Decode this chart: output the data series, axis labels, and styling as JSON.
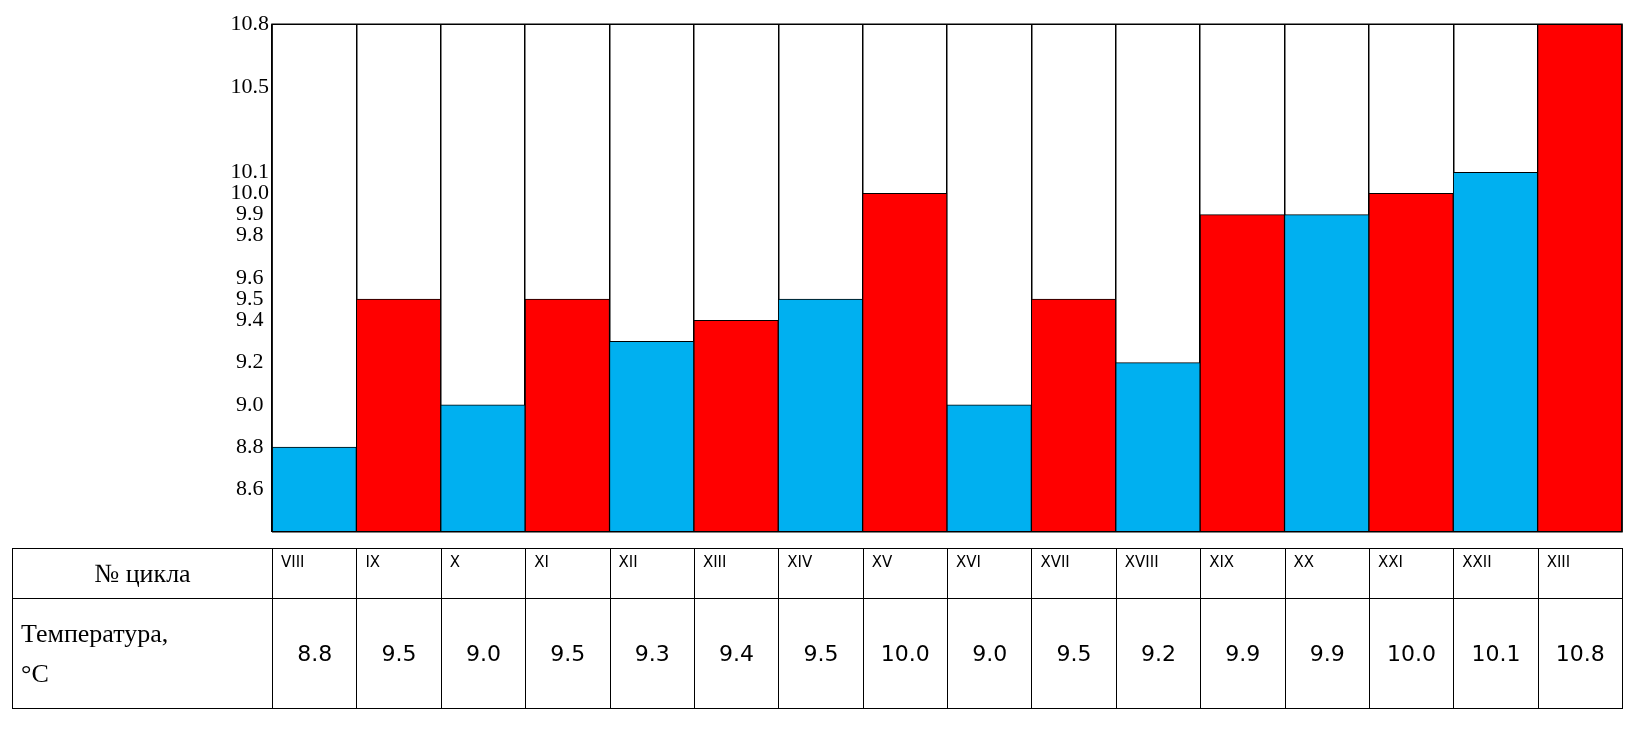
{
  "chart_data": {
    "type": "bar",
    "xlabel": "№ цикла",
    "ylabel": "Температура, °C",
    "categories": [
      "VIII",
      "IX",
      "X",
      "XI",
      "XII",
      "XIII",
      "XIV",
      "XV",
      "XVI",
      "XVII",
      "XVIII",
      "XIX",
      "XX",
      "XXI",
      "XXII",
      "XIII"
    ],
    "values": [
      8.8,
      9.5,
      9.0,
      9.5,
      9.3,
      9.4,
      9.5,
      10.0,
      9.0,
      9.5,
      9.2,
      9.9,
      9.9,
      10.0,
      10.1,
      10.8
    ],
    "value_labels": [
      "8.8",
      "9.5",
      "9.0",
      "9.5",
      "9.3",
      "9.4",
      "9.5",
      "10.0",
      "9.0",
      "9.5",
      "9.2",
      "9.9",
      "9.9",
      "10.0",
      "10.1",
      "10.8"
    ],
    "colors": [
      "#00b0f0",
      "#ff0000",
      "#00b0f0",
      "#ff0000",
      "#00b0f0",
      "#ff0000",
      "#00b0f0",
      "#ff0000",
      "#00b0f0",
      "#ff0000",
      "#00b0f0",
      "#ff0000",
      "#00b0f0",
      "#ff0000",
      "#00b0f0",
      "#ff0000"
    ],
    "ylim": [
      8.4,
      10.8
    ],
    "yticks": [
      8.6,
      8.8,
      {
        "value": 9.0,
        "label": "9.0"
      },
      9.2,
      9.4,
      9.5,
      9.6,
      9.8,
      9.9,
      {
        "value": 10.0,
        "label": "10.0"
      },
      10.1,
      10.5,
      10.8
    ],
    "grid": "x",
    "legend": false
  }
}
